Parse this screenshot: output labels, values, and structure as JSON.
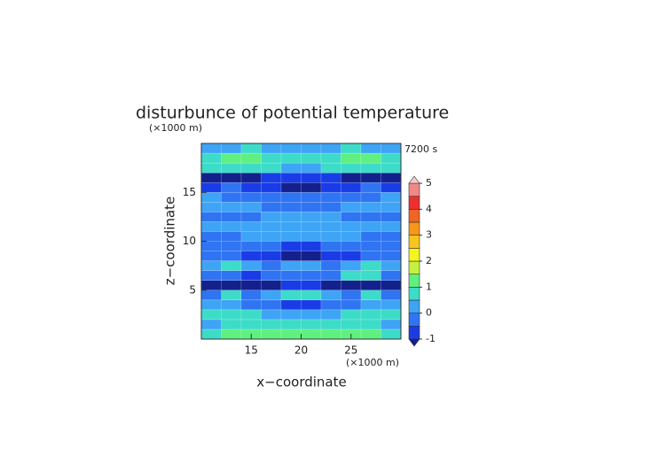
{
  "chart_data": {
    "type": "contour",
    "title": "disturbunce of potential temperature",
    "y_unit": "(×1000 m)",
    "x_unit": "(×1000 m)",
    "x_label": "x−coordinate",
    "y_label": "z−coordinate",
    "annotation": "7200 s",
    "xlim": [
      10,
      30
    ],
    "ylim": [
      0,
      20
    ],
    "xticks": [
      15,
      20,
      25
    ],
    "yticks": [
      5,
      10,
      15
    ],
    "x": [
      11,
      13,
      15,
      17,
      19,
      21,
      23,
      25,
      27,
      29
    ],
    "y": [
      0.5,
      1.5,
      2.5,
      3.5,
      4.5,
      5.5,
      6.5,
      7.5,
      8.5,
      9.5,
      10.5,
      11.5,
      12.5,
      13.5,
      14.5,
      15.5,
      16.5,
      17.5,
      18.5,
      19.5
    ],
    "z": [
      [
        0.7,
        1.3,
        1.4,
        1.3,
        1.0,
        1.0,
        1.3,
        1.4,
        1.3,
        0.7
      ],
      [
        0.4,
        0.6,
        0.7,
        0.6,
        0.5,
        0.5,
        0.6,
        0.7,
        0.6,
        0.4
      ],
      [
        0.8,
        0.9,
        0.7,
        0.4,
        0.2,
        0.2,
        0.4,
        0.7,
        0.9,
        0.8
      ],
      [
        0.2,
        0.1,
        -0.1,
        -0.2,
        -0.6,
        -0.6,
        -0.2,
        -0.1,
        0.1,
        0.2
      ],
      [
        -0.3,
        0.6,
        -0.4,
        0.3,
        0.6,
        0.6,
        0.3,
        -0.4,
        0.6,
        -0.3
      ],
      [
        -1.2,
        -1.1,
        -1.1,
        -1.2,
        -0.8,
        -0.8,
        -1.2,
        -1.1,
        -1.1,
        -1.2
      ],
      [
        -0.4,
        -0.3,
        -0.6,
        -0.4,
        -0.2,
        -0.2,
        -0.4,
        0.6,
        0.7,
        -0.4
      ],
      [
        0.1,
        0.6,
        0.2,
        -0.3,
        0.1,
        0.1,
        -0.3,
        0.2,
        0.6,
        0.1
      ],
      [
        -0.4,
        -0.5,
        -0.6,
        -0.7,
        -1.1,
        -1.1,
        -0.7,
        -0.6,
        -0.5,
        -0.4
      ],
      [
        -0.3,
        -0.4,
        -0.4,
        -0.3,
        -0.6,
        -0.6,
        -0.3,
        -0.4,
        -0.4,
        -0.3
      ],
      [
        -0.3,
        -0.2,
        0.1,
        0.2,
        0.1,
        0.1,
        0.2,
        0.1,
        -0.2,
        -0.3
      ],
      [
        0.1,
        0.1,
        0.1,
        0.2,
        0.2,
        0.2,
        0.2,
        0.1,
        0.1,
        0.1
      ],
      [
        -0.4,
        -0.4,
        -0.3,
        0.1,
        0.2,
        0.2,
        0.1,
        -0.3,
        -0.4,
        -0.4
      ],
      [
        0.1,
        0.2,
        0.1,
        -0.3,
        -0.4,
        -0.4,
        -0.3,
        0.1,
        0.2,
        0.1
      ],
      [
        0.3,
        -0.3,
        -0.4,
        -0.4,
        -0.4,
        -0.4,
        -0.4,
        -0.4,
        -0.3,
        0.3
      ],
      [
        -0.6,
        -0.4,
        -0.6,
        -0.8,
        -1.1,
        -1.1,
        -0.8,
        -0.6,
        -0.4,
        -0.6
      ],
      [
        -1.1,
        -1.2,
        -1.1,
        -0.7,
        -0.6,
        -0.6,
        -0.7,
        -1.1,
        -1.2,
        -1.1
      ],
      [
        0.6,
        0.7,
        0.8,
        0.6,
        0.3,
        0.3,
        0.6,
        0.8,
        0.7,
        0.6
      ],
      [
        0.6,
        1.3,
        1.4,
        0.9,
        0.6,
        0.6,
        0.9,
        1.4,
        1.3,
        0.6
      ],
      [
        0.2,
        0.4,
        0.5,
        0.4,
        0.3,
        0.3,
        0.4,
        0.5,
        0.4,
        0.2
      ]
    ],
    "levels": [
      -1,
      -0.5,
      0,
      0.5,
      1,
      1.5,
      2,
      2.5,
      3,
      3.5,
      4,
      4.5,
      5
    ],
    "colors": [
      "#1a3ce6",
      "#2f74f2",
      "#3ea4f6",
      "#3ddcc8",
      "#5ff080",
      "#c4f23e",
      "#f5f51e",
      "#f8c41e",
      "#f8961a",
      "#f06424",
      "#ec3030",
      "#f08888"
    ],
    "under_color": "#14208c",
    "over_color": "#f8c8c8",
    "colorbar_ticks": [
      -1,
      0,
      1,
      2,
      3,
      4,
      5
    ]
  }
}
